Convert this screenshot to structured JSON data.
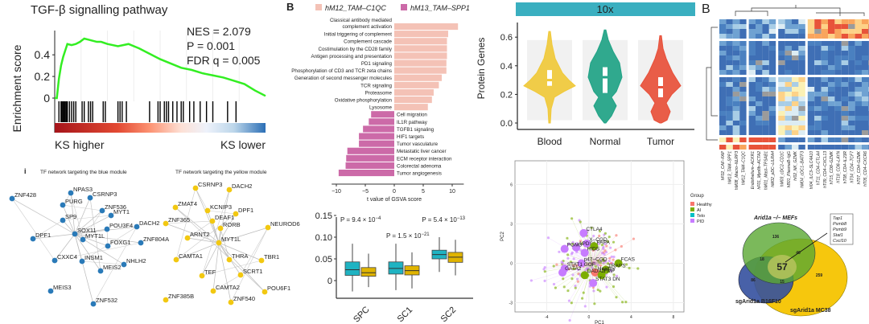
{
  "chart_data": [
    {
      "id": "gsea",
      "type": "line",
      "title": "TGF-β signalling pathway",
      "ylabel": "Enrichment score",
      "ylim": [
        -0.02,
        0.6
      ],
      "yticks": [
        "0",
        "0.2",
        "0.4"
      ],
      "ytick_values": [
        0,
        0.2,
        0.4
      ],
      "stats": [
        "NES = 2.079",
        "P = 0.001",
        "FDR q = 0.005"
      ],
      "x_left_label": "KS higher",
      "x_right_label": "KS lower",
      "x": [
        0,
        0.01,
        0.02,
        0.03,
        0.04,
        0.05,
        0.06,
        0.08,
        0.1,
        0.12,
        0.14,
        0.16,
        0.18,
        0.2,
        0.22,
        0.25,
        0.3,
        0.35,
        0.4,
        0.45,
        0.5,
        0.55,
        0.6,
        0.65,
        0.7,
        0.75,
        0.8,
        0.85,
        0.9,
        0.95,
        1.0
      ],
      "values": [
        0,
        0.0,
        0.18,
        0.3,
        0.38,
        0.44,
        0.5,
        0.49,
        0.5,
        0.52,
        0.55,
        0.54,
        0.53,
        0.52,
        0.52,
        0.5,
        0.48,
        0.5,
        0.46,
        0.41,
        0.36,
        0.32,
        0.28,
        0.26,
        0.23,
        0.21,
        0.19,
        0.16,
        0.13,
        0.07,
        0.02
      ],
      "hits": [
        0.02,
        0.03,
        0.035,
        0.04,
        0.045,
        0.05,
        0.055,
        0.06,
        0.07,
        0.08,
        0.09,
        0.1,
        0.13,
        0.14,
        0.16,
        0.17,
        0.18,
        0.23,
        0.24,
        0.3,
        0.31,
        0.32,
        0.34,
        0.45,
        0.49,
        0.5,
        0.52,
        0.53,
        0.54,
        0.56,
        0.58,
        0.6,
        0.61,
        0.64,
        0.66,
        0.69,
        0.72,
        0.75,
        0.82,
        0.86
      ],
      "line_color": "#33ee22"
    },
    {
      "id": "gsva",
      "type": "bar",
      "panel_label": "B",
      "legend": [
        "hM12_TAM–C1QC",
        "hM13_TAM–SPP1"
      ],
      "colors": [
        "#f4c2b6",
        "#cc6aa8"
      ],
      "xlabel": "t value of GSVA score",
      "xlim": [
        -10,
        12
      ],
      "xticks": [
        "−10",
        "−5",
        "0",
        "5",
        "10"
      ],
      "xtick_values": [
        -10,
        -5,
        0,
        5,
        10
      ],
      "categories": [
        "Classical antibody mediated complement activation",
        "Initial triggering of complement",
        "Complement cascade",
        "Costimulation by the CD28 family",
        "Antigen processing and presentation",
        "PD1 signaling",
        "Phosphorylation of CD3 and TCR zeta chains",
        "Generation of second messenger molecules",
        "TCR signaling",
        "Proteasome",
        "Oxidative phosphorylation",
        "Lysosome",
        "Cell migration",
        "IL1R pathway",
        "TGFB1 signaling",
        "HIF1 targets",
        "Tumor vasculature",
        "Metastatic liver cancer",
        "ECM receptor interaction",
        "Colorectal adenoma",
        "Tumor angiogenesis"
      ],
      "category_lines": [
        [
          "Classical antibody mediated",
          "complement activation"
        ]
      ],
      "values": [
        11.0,
        9.3,
        9.1,
        9.1,
        9.1,
        9.0,
        9.0,
        8.2,
        7.7,
        6.8,
        6.5,
        5.8,
        -4.0,
        -4.4,
        -5.4,
        -6.1,
        -6.1,
        -8.1,
        -8.3,
        -8.4,
        -9.6
      ]
    },
    {
      "id": "boxplot",
      "type": "box",
      "categories": [
        "SPC",
        "SC1",
        "SC2"
      ],
      "ylim": [
        -0.03,
        0.16
      ],
      "yticks": [
        "0",
        "0.05",
        "0.10",
        "0.15"
      ],
      "ytick_values": [
        0,
        0.05,
        0.1,
        0.15
      ],
      "series_colors": [
        "#1fb3c2",
        "#e0b400"
      ],
      "boxes": [
        [
          [
            -0.025,
            0.012,
            0.025,
            0.043,
            0.085
          ],
          [
            -0.015,
            0.01,
            0.018,
            0.03,
            0.062
          ]
        ],
        [
          [
            -0.022,
            0.015,
            0.028,
            0.043,
            0.085
          ],
          [
            -0.018,
            0.013,
            0.023,
            0.034,
            0.065
          ]
        ],
        [
          [
            0.02,
            0.05,
            0.06,
            0.07,
            0.1
          ],
          [
            0.012,
            0.042,
            0.054,
            0.065,
            0.094
          ]
        ]
      ],
      "annotations": [
        {
          "text": "P = 9.4 × 10",
          "exp": "−4",
          "pos": "top-left"
        },
        {
          "text": "P = 1.5 × 10",
          "exp": "−21",
          "pos": "top-center"
        },
        {
          "text": "P = 5.4 × 10",
          "exp": "−13",
          "pos": "top-right"
        }
      ]
    },
    {
      "id": "violin",
      "type": "violin",
      "facet": "10x",
      "ylabel": "Protein Genes",
      "ylim": [
        0,
        0.65
      ],
      "yticks": [
        "0.0",
        "0.2",
        "0.4",
        "0.6"
      ],
      "ytick_values": [
        0,
        0.2,
        0.4,
        0.6
      ],
      "categories": [
        "Blood",
        "Normal",
        "Tumor"
      ],
      "colors": [
        "#f0c93a",
        "#20a386",
        "#e8503a"
      ],
      "medians": [
        0.3,
        0.32,
        0.25
      ],
      "q1": [
        0.26,
        0.21,
        0.18
      ],
      "q3": [
        0.37,
        0.39,
        0.32
      ],
      "min": [
        0.0,
        0.0,
        0.0
      ],
      "max": [
        0.64,
        0.65,
        0.61
      ]
    },
    {
      "id": "heatmap",
      "type": "heatmap",
      "panel_label": "B",
      "columns": [
        "hF02_CAF–FAP",
        "hM13_TAM–SPP1",
        "hM08_Macro–NLRP3",
        "hM12_TAM–C1QC",
        "Endothelium–ACKR1",
        "hF01_Myofib–ACTA2",
        "hM01_Mast–TPSAB1",
        "hM02_pDC–LILRA4",
        "hM03_cDC2–CD1C",
        "hB01_PlasmaB–IgG",
        "hI02_NK_GZMK",
        "hM04_cDC1–BATF3",
        "hI04_ILC3–SLC4A10",
        "hT11_CD4–CTLA4",
        "hT09_CD4–CXCL13",
        "hT15_CD8–GZMK",
        "hT18_CD8–LAYN",
        "hT08_CD4–IL23R",
        "hT04_CD4–TCF7",
        "hT07_CD4–GZMK",
        "hT05_CD4–CXCR6",
        "hT16_CD8–CD6"
      ]
    },
    {
      "id": "pca",
      "type": "scatter",
      "xlabel": "PC1",
      "ylabel": "PC2",
      "xlim": [
        -7,
        9
      ],
      "ylim": [
        -3.7,
        7.8
      ],
      "xticks": [
        "-4",
        "0",
        "4",
        "8"
      ],
      "xtick_values": [
        -4,
        0,
        4,
        8
      ],
      "yticks": [
        "-3",
        "0",
        "3",
        "6"
      ],
      "ytick_values": [
        -3,
        0,
        3,
        6
      ],
      "legend_title": "Group",
      "legend": [
        "Healthy",
        "AI",
        "Telo",
        "PID"
      ],
      "colors": [
        "#f8766d",
        "#7cae00",
        "#00bfc4",
        "#c77cff"
      ],
      "centroids": [
        {
          "label": "CTLA4",
          "x": -0.5,
          "y": 2.3,
          "group": "PID"
        },
        {
          "label": "X–CGD",
          "x": -0.2,
          "y": 1.5,
          "group": "PID"
        },
        {
          "label": "APDS1",
          "x": -1.2,
          "y": 1.2,
          "group": "PID"
        },
        {
          "label": "PAPA",
          "x": 0.5,
          "y": 1.3,
          "group": "AI"
        },
        {
          "label": "HIDS",
          "x": -0.4,
          "y": 0.8,
          "group": "PID"
        },
        {
          "label": "PGM3",
          "x": -2.3,
          "y": 1.1,
          "group": "PID"
        },
        {
          "label": "p47–CGD",
          "x": -0.7,
          "y": 0.0,
          "group": "PID"
        },
        {
          "label": "FCAS",
          "x": 2.8,
          "y": 0.0,
          "group": "AI"
        },
        {
          "label": "STAT1 GOF",
          "x": -2.3,
          "y": -0.4,
          "group": "PID"
        },
        {
          "label": "TRAPS",
          "x": 1.6,
          "y": -0.5,
          "group": "AI"
        },
        {
          "label": "Healthy",
          "x": 0.6,
          "y": -0.7,
          "group": "Healthy"
        },
        {
          "label": "GATA2",
          "x": -2.5,
          "y": -0.7,
          "group": "PID"
        },
        {
          "label": "FMF",
          "x": 1.2,
          "y": -0.9,
          "group": "AI"
        },
        {
          "label": "DADA2",
          "x": -0.4,
          "y": -0.9,
          "group": "AI"
        },
        {
          "label": "STAT3 DN",
          "x": 0.4,
          "y": -1.5,
          "group": "PID"
        }
      ]
    },
    {
      "id": "venn",
      "type": "venn",
      "sets": [
        "Arid1a –/– MEFs",
        "sgArid1a B16F10",
        "sgArid1a MC38"
      ],
      "colors": [
        "#5aa832",
        "#34509e",
        "#f5c400"
      ],
      "regions": {
        "MEFs_only": "136",
        "MEFs_B16": "18",
        "B16_only": "86",
        "all": "57",
        "MEFs_MC38": "40",
        "B16_MC38": "15",
        "MC38_only": "259"
      },
      "callout_genes": [
        "Tap1",
        "Psmb8",
        "Psmb9",
        "Stat1",
        "Cxcl10"
      ]
    },
    {
      "id": "network",
      "type": "network",
      "panel_label": "i",
      "titles": [
        "TF network targeting the blue module",
        "TF network targeting the yellow module"
      ],
      "blue_nodes": [
        "NPAS3",
        "ZNF428",
        "CSRNP3",
        "PURG",
        "ZNF536",
        "MYT1",
        "SP9",
        "POU3F4",
        "DACH2",
        "DPF1",
        "SOX11",
        "MYT1L",
        "FOXG1",
        "ZNF804A",
        "CXXC4",
        "INSM1",
        "NHLH2",
        "MEIS2",
        "MEIS3",
        "ZNF532"
      ],
      "yellow_nodes": [
        "CSRNP3",
        "DACH2",
        "ZMAT4",
        "KCNIP3",
        "DPF1",
        "ZNF365",
        "DEAF1",
        "RORB",
        "NEUROD6",
        "ARNT2",
        "MYT1L",
        "CAMTA1",
        "THRA",
        "TBR1",
        "TEF",
        "SCRT1",
        "CAMTA2",
        "POU6F1",
        "ZNF385B",
        "ZNF540"
      ],
      "node_colors": [
        "#2a7ab8",
        "#f2c811"
      ]
    }
  ]
}
